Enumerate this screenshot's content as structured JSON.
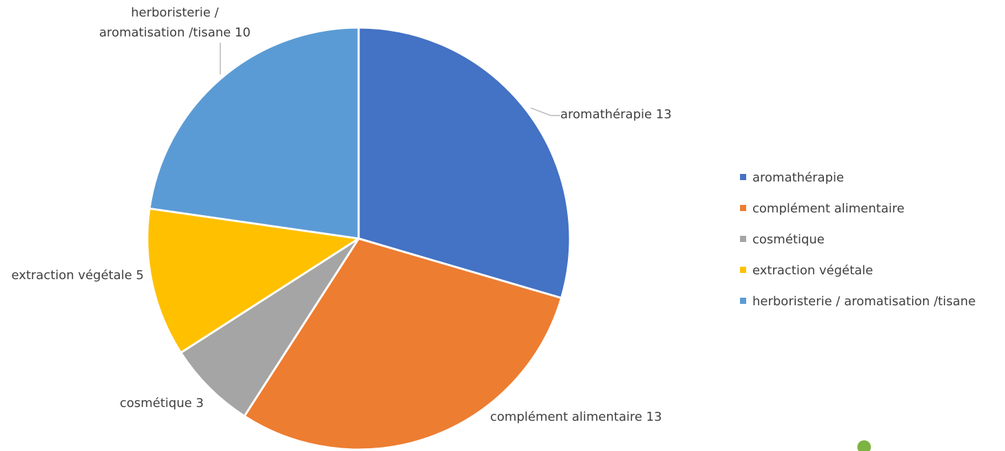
{
  "chart_data": {
    "type": "pie",
    "slices": [
      {
        "label": "aromathérapie",
        "value": 13,
        "color": "#4472C4",
        "data_label": "aromathérapie 13"
      },
      {
        "label": "complément alimentaire",
        "value": 13,
        "color": "#ED7D31",
        "data_label": "complément alimentaire 13"
      },
      {
        "label": "cosmétique",
        "value": 3,
        "color": "#A5A5A5",
        "data_label": "cosmétique 3"
      },
      {
        "label": "extraction végétale",
        "value": 5,
        "color": "#FFC000",
        "data_label": "extraction végétale 5"
      },
      {
        "label": "herboristerie / aromatisation /tisane",
        "value": 10,
        "color": "#5B9BD5",
        "data_label_lines": [
          "herboristerie /",
          "aromatisation /tisane 10"
        ]
      }
    ],
    "legend": {
      "placement": "right",
      "entries": [
        "aromathérapie",
        "complément alimentaire",
        "cosmétique",
        "extraction végétale",
        "herboristerie / aromatisation /tisane"
      ]
    }
  }
}
